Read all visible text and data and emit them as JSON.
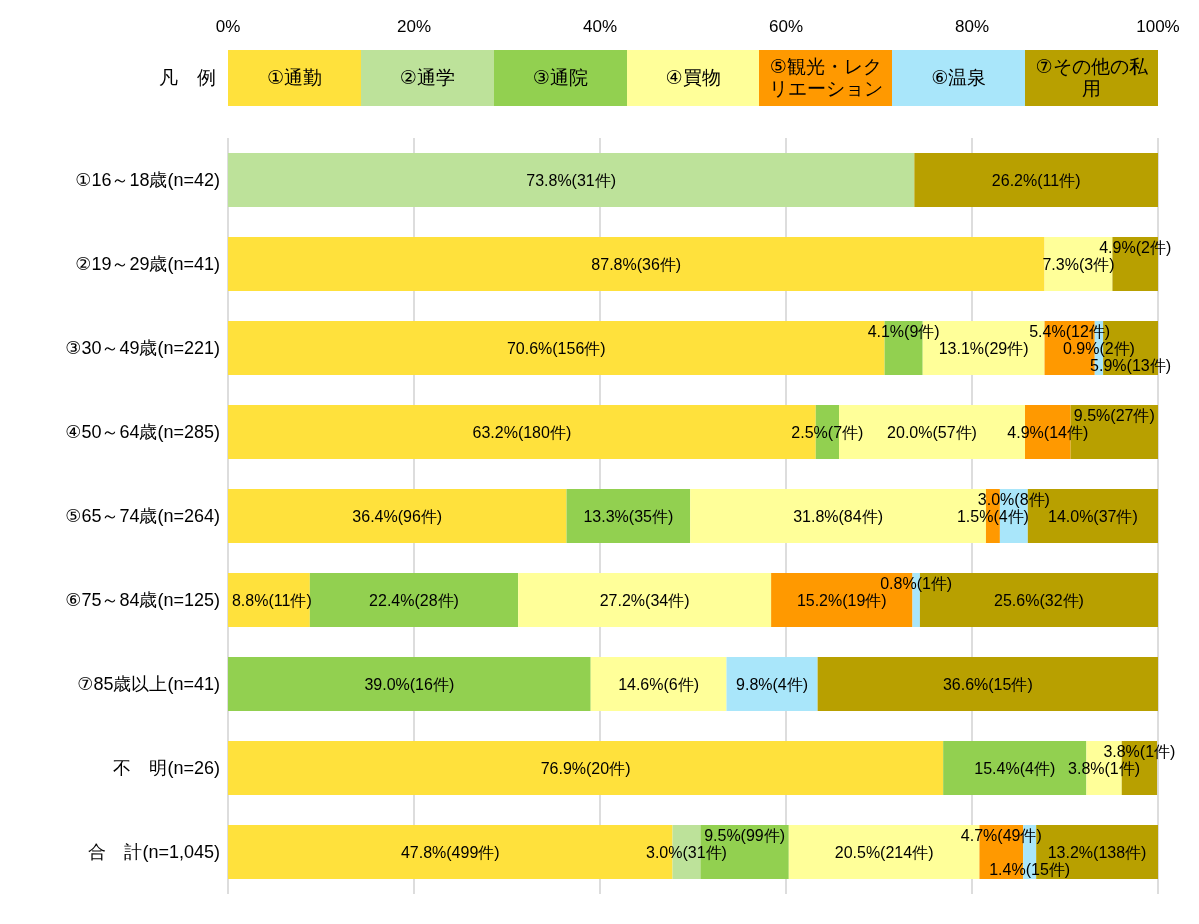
{
  "chart_data": {
    "type": "bar",
    "orientation": "horizontal",
    "stacked": true,
    "legend": "top",
    "legend_title": "凡　例",
    "grid": "x",
    "categories": [
      "①16～18歳(n=42)",
      "②19～29歳(n=41)",
      "③30～49歳(n=221)",
      "④50～64歳(n=285)",
      "⑤65～74歳(n=264)",
      "⑥75～84歳(n=125)",
      "⑦85歳以上(n=41)",
      "不　明(n=26)",
      "合　計(n=1,045)"
    ],
    "xlim": [
      0,
      100
    ],
    "xticks": [
      {
        "value": 0,
        "label": "0%"
      },
      {
        "value": 20,
        "label": "20%"
      },
      {
        "value": 40,
        "label": "40%"
      },
      {
        "value": 60,
        "label": "60%"
      },
      {
        "value": 80,
        "label": "80%"
      },
      {
        "value": 100,
        "label": "100%"
      }
    ],
    "series": [
      {
        "name": "①通勤",
        "color": "#ffe13c",
        "values": [
          null,
          87.8,
          70.6,
          63.2,
          36.4,
          8.8,
          null,
          76.9,
          47.8
        ],
        "value_labels": [
          null,
          "87.8%(36件)",
          "70.6%(156件)",
          "63.2%(180件)",
          "36.4%(96件)",
          "8.8%(11件)",
          null,
          "76.9%(20件)",
          "47.8%(499件)"
        ]
      },
      {
        "name": "②通学",
        "color": "#bde29a",
        "values": [
          73.8,
          null,
          null,
          null,
          null,
          null,
          null,
          null,
          3.0
        ],
        "value_labels": [
          "73.8%(31件)",
          null,
          null,
          null,
          null,
          null,
          null,
          null,
          "3.0%(31件)"
        ]
      },
      {
        "name": "③通院",
        "color": "#92d050",
        "values": [
          null,
          null,
          4.1,
          2.5,
          13.3,
          22.4,
          39.0,
          15.4,
          9.5
        ],
        "value_labels": [
          null,
          null,
          "4.1%(9件)",
          "2.5%(7件)",
          "13.3%(35件)",
          "22.4%(28件)",
          "39.0%(16件)",
          "15.4%(4件)",
          "9.5%(99件)"
        ]
      },
      {
        "name": "④買物",
        "color": "#ffff99",
        "values": [
          null,
          7.3,
          13.1,
          20.0,
          31.8,
          27.2,
          14.6,
          3.8,
          20.5
        ],
        "value_labels": [
          null,
          "7.3%(3件)",
          "13.1%(29件)",
          "20.0%(57件)",
          "31.8%(84件)",
          "27.2%(34件)",
          "14.6%(6件)",
          "3.8%(1件)",
          "20.5%(214件)"
        ]
      },
      {
        "name": "⑤観光・レクリエーション",
        "color": "#ff9900",
        "values": [
          null,
          null,
          5.4,
          4.9,
          1.5,
          15.2,
          null,
          null,
          4.7
        ],
        "value_labels": [
          null,
          null,
          "5.4%(12件)",
          "4.9%(14件)",
          "1.5%(4件)",
          "15.2%(19件)",
          null,
          null,
          "4.7%(49件)"
        ]
      },
      {
        "name": "⑥温泉",
        "color": "#a9e6fa",
        "values": [
          null,
          null,
          0.9,
          null,
          3.0,
          0.8,
          9.8,
          null,
          1.4
        ],
        "value_labels": [
          null,
          null,
          "0.9%(2件)",
          null,
          "3.0%(8件)",
          "0.8%(1件)",
          "9.8%(4件)",
          null,
          "1.4%(15件)"
        ]
      },
      {
        "name": "⑦その他の私用",
        "color": "#b8a000",
        "values": [
          26.2,
          4.9,
          5.9,
          9.5,
          14.0,
          25.6,
          36.6,
          3.8,
          13.2
        ],
        "value_labels": [
          "26.2%(11件)",
          "4.9%(2件)",
          "5.9%(13件)",
          "9.5%(27件)",
          "14.0%(37件)",
          "25.6%(32件)",
          "36.6%(15件)",
          "3.8%(1件)",
          "13.2%(138件)"
        ]
      }
    ]
  }
}
